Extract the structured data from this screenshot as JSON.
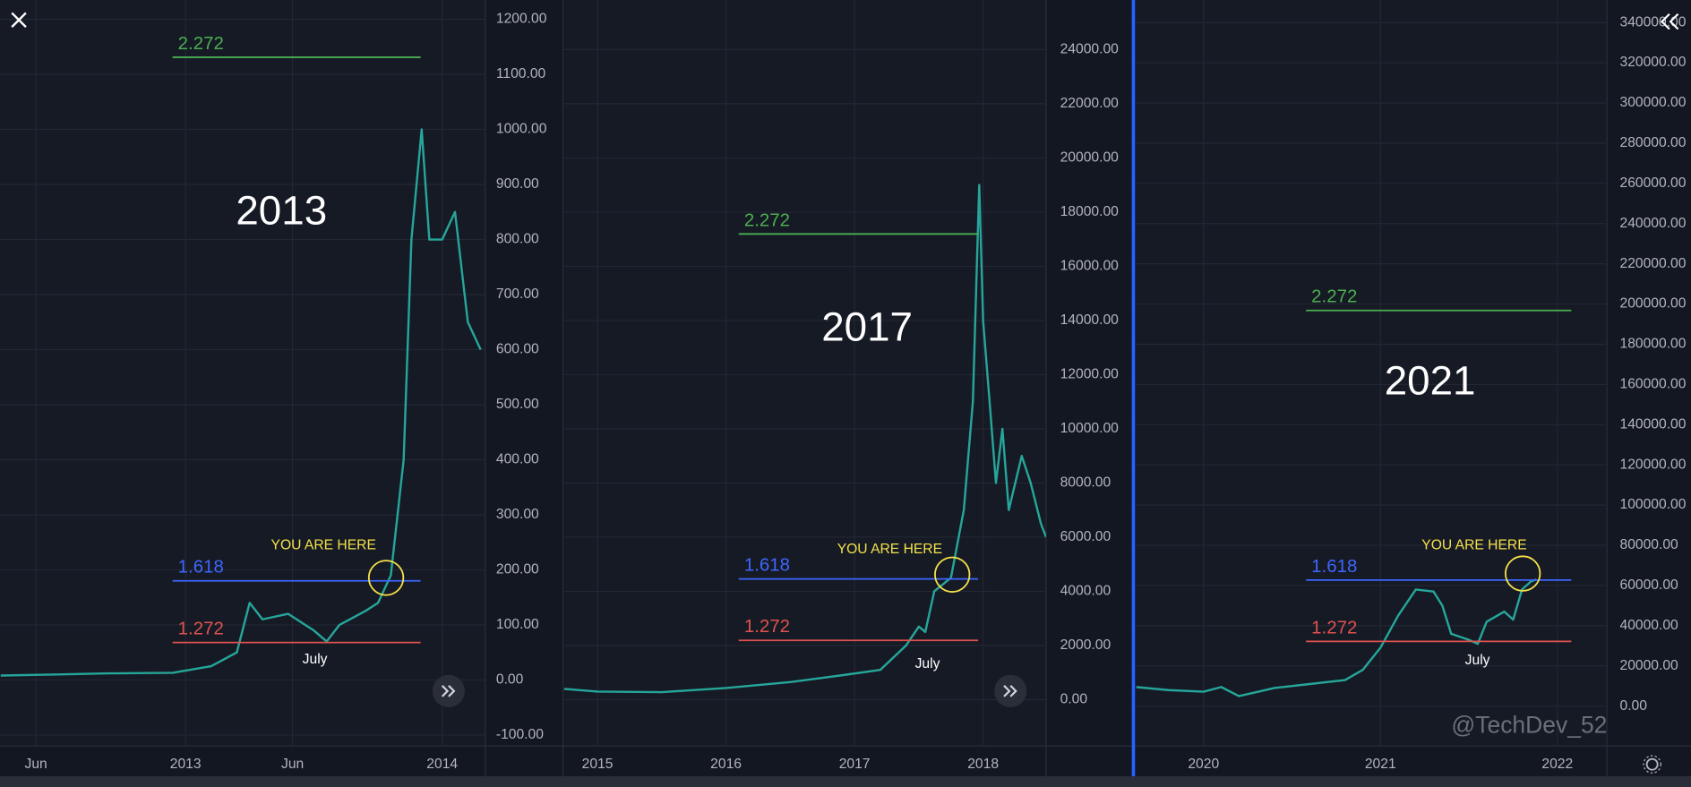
{
  "chart_data": [
    {
      "type": "line",
      "color": "#26a69a",
      "grid": true,
      "x": [
        2012.28,
        2012.5,
        2012.7,
        2012.95,
        2013.1,
        2013.2,
        2013.25,
        2013.3,
        2013.4,
        2013.5,
        2013.55,
        2013.6,
        2013.7,
        2013.75,
        2013.8,
        2013.85,
        2013.88,
        2013.92,
        2013.95,
        2014.0,
        2014.05,
        2014.1,
        2014.15
      ],
      "values": [
        8,
        10,
        12,
        13,
        25,
        50,
        140,
        110,
        120,
        90,
        70,
        100,
        125,
        140,
        190,
        400,
        800,
        1000,
        800,
        800,
        850,
        650,
        600
      ],
      "xlim": [
        2012.277,
        2014.168
      ],
      "ylim": [
        -120,
        1235
      ],
      "xticks": [
        {
          "value": 2012.417,
          "label": "Jun"
        },
        2013,
        {
          "value": 2013.417,
          "label": "Jun"
        },
        2014
      ],
      "yticks": [
        {
          "value": -100,
          "label": "-100.00"
        },
        {
          "value": 0,
          "label": "0.00"
        },
        {
          "value": 100,
          "label": "100.00"
        },
        {
          "value": 200,
          "label": "200.00"
        },
        {
          "value": 300,
          "label": "300.00"
        },
        {
          "value": 400,
          "label": "400.00"
        },
        {
          "value": 500,
          "label": "500.00"
        },
        {
          "value": 600,
          "label": "600.00"
        },
        {
          "value": 700,
          "label": "700.00"
        },
        {
          "value": 800,
          "label": "800.00"
        },
        {
          "value": 900,
          "label": "900.00"
        },
        {
          "value": 1000,
          "label": "1000.00"
        },
        {
          "value": 1100,
          "label": "1100.00"
        },
        {
          "value": 1200,
          "label": "1200.00"
        }
      ],
      "levels": [
        {
          "label": "2.272",
          "value": 1131,
          "color": "#4caf50"
        },
        {
          "label": "1.618",
          "value": 180,
          "color": "#3d66ff"
        },
        {
          "label": "1.272",
          "value": 68,
          "color": "#e0524f"
        }
      ],
      "year_label": "2013",
      "marker_text": "YOU ARE HERE",
      "month_label": "July"
    },
    {
      "type": "line",
      "color": "#26a69a",
      "grid": true,
      "x": [
        2014.74,
        2015.0,
        2015.5,
        2016.0,
        2016.5,
        2016.9,
        2017.2,
        2017.4,
        2017.5,
        2017.55,
        2017.62,
        2017.75,
        2017.85,
        2017.92,
        2017.97,
        2018.0,
        2018.05,
        2018.1,
        2018.15,
        2018.2,
        2018.3,
        2018.37,
        2018.45,
        2018.49
      ],
      "values": [
        400,
        300,
        280,
        430,
        650,
        900,
        1100,
        2000,
        2700,
        2500,
        4000,
        4500,
        7000,
        11000,
        19000,
        14000,
        11000,
        8000,
        10000,
        7000,
        9000,
        8000,
        6500,
        6000
      ],
      "xlim": [
        2014.74,
        2018.49
      ],
      "ylim": [
        -1711,
        25831
      ],
      "xticks": [
        2015,
        2016,
        2017,
        2018
      ],
      "yticks": [
        {
          "value": 0,
          "label": "0.00"
        },
        {
          "value": 2000,
          "label": "2000.00"
        },
        {
          "value": 4000,
          "label": "4000.00"
        },
        {
          "value": 6000,
          "label": "6000.00"
        },
        {
          "value": 8000,
          "label": "8000.00"
        },
        {
          "value": 10000,
          "label": "10000.00"
        },
        {
          "value": 12000,
          "label": "12000.00"
        },
        {
          "value": 14000,
          "label": "14000.00"
        },
        {
          "value": 16000,
          "label": "16000.00"
        },
        {
          "value": 18000,
          "label": "18000.00"
        },
        {
          "value": 20000,
          "label": "20000.00"
        },
        {
          "value": 22000,
          "label": "22000.00"
        },
        {
          "value": 24000,
          "label": "24000.00"
        }
      ],
      "levels": [
        {
          "label": "2.272",
          "value": 17194,
          "color": "#4caf50"
        },
        {
          "label": "1.618",
          "value": 4458,
          "color": "#3d66ff"
        },
        {
          "label": "1.272",
          "value": 2189,
          "color": "#e0524f"
        }
      ],
      "year_label": "2017",
      "marker_text": "YOU ARE HERE",
      "month_label": "July"
    },
    {
      "type": "line",
      "color": "#26a69a",
      "grid": true,
      "x": [
        2019.62,
        2019.8,
        2020.0,
        2020.1,
        2020.2,
        2020.4,
        2020.6,
        2020.8,
        2020.9,
        2021.0,
        2021.1,
        2021.2,
        2021.3,
        2021.35,
        2021.4,
        2021.5,
        2021.55,
        2021.6,
        2021.7,
        2021.75,
        2021.8,
        2021.85,
        2021.88
      ],
      "values": [
        9500,
        8000,
        7200,
        9500,
        5000,
        9000,
        11000,
        13000,
        18000,
        29000,
        45000,
        58000,
        57000,
        50000,
        36000,
        33000,
        31000,
        42000,
        47000,
        43000,
        58000,
        62000,
        63000
      ],
      "xlim": [
        2019.616,
        2022.28
      ],
      "ylim": [
        -19840,
        351200
      ],
      "xticks": [
        2020,
        2021,
        2022
      ],
      "yticks": [
        {
          "value": 0,
          "label": "0.00"
        },
        {
          "value": 20000,
          "label": "20000.00"
        },
        {
          "value": 40000,
          "label": "40000.00"
        },
        {
          "value": 60000,
          "label": "60000.00"
        },
        {
          "value": 80000,
          "label": "80000.00"
        },
        {
          "value": 100000,
          "label": "100000.00"
        },
        {
          "value": 120000,
          "label": "120000.00"
        },
        {
          "value": 140000,
          "label": "140000.00"
        },
        {
          "value": 160000,
          "label": "160000.00"
        },
        {
          "value": 180000,
          "label": "180000.00"
        },
        {
          "value": 200000,
          "label": "200000.00"
        },
        {
          "value": 220000,
          "label": "220000.00"
        },
        {
          "value": 240000,
          "label": "240000.00"
        },
        {
          "value": 260000,
          "label": "260000.00"
        },
        {
          "value": 280000,
          "label": "280000.00"
        },
        {
          "value": 300000,
          "label": "300000.00"
        },
        {
          "value": 320000,
          "label": "320000.00"
        },
        {
          "value": 340000,
          "label": "340000.00"
        }
      ],
      "levels": [
        {
          "label": "2.272",
          "value": 196800,
          "color": "#4caf50"
        },
        {
          "label": "1.618",
          "value": 62700,
          "color": "#3d66ff"
        },
        {
          "label": "1.272",
          "value": 32200,
          "color": "#e0524f"
        }
      ],
      "year_label": "2021",
      "marker_text": "YOU ARE HERE",
      "month_label": "July"
    }
  ],
  "watermark": "@TechDev_52"
}
